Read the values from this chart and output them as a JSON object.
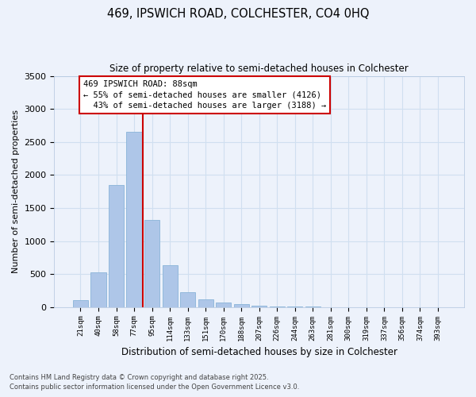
{
  "title_line1": "469, IPSWICH ROAD, COLCHESTER, CO4 0HQ",
  "title_line2": "Size of property relative to semi-detached houses in Colchester",
  "xlabel": "Distribution of semi-detached houses by size in Colchester",
  "ylabel": "Number of semi-detached properties",
  "property_label": "469 IPSWICH ROAD: 88sqm",
  "pct_smaller": 55,
  "pct_larger": 43,
  "count_smaller": 4126,
  "count_larger": 3188,
  "categories": [
    "21sqm",
    "40sqm",
    "58sqm",
    "77sqm",
    "95sqm",
    "114sqm",
    "133sqm",
    "151sqm",
    "170sqm",
    "188sqm",
    "207sqm",
    "226sqm",
    "244sqm",
    "263sqm",
    "281sqm",
    "300sqm",
    "319sqm",
    "337sqm",
    "356sqm",
    "374sqm",
    "393sqm"
  ],
  "values": [
    100,
    530,
    1850,
    2650,
    1320,
    630,
    230,
    120,
    70,
    40,
    20,
    10,
    5,
    3,
    2,
    1,
    1,
    0,
    0,
    0,
    0
  ],
  "bar_color": "#aec6e8",
  "bar_edge_color": "#8ab4d8",
  "vline_color": "#cc0000",
  "vline_x": 3.5,
  "grid_color": "#d0dff0",
  "background_color": "#edf2fb",
  "annotation_box_color": "#ffffff",
  "annotation_box_edge": "#cc0000",
  "ylim": [
    0,
    3500
  ],
  "yticks": [
    0,
    500,
    1000,
    1500,
    2000,
    2500,
    3000,
    3500
  ],
  "footer_line1": "Contains HM Land Registry data © Crown copyright and database right 2025.",
  "footer_line2": "Contains public sector information licensed under the Open Government Licence v3.0."
}
